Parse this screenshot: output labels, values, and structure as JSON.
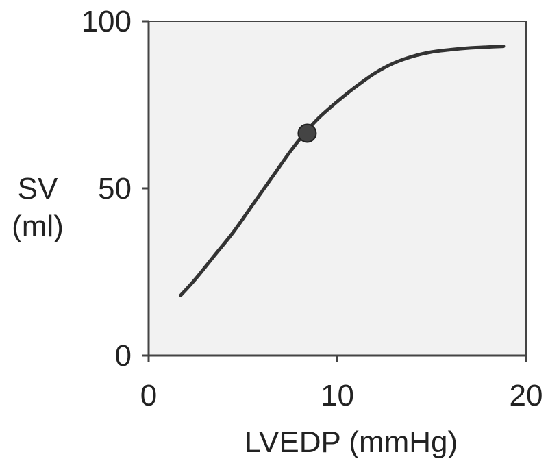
{
  "colors": {
    "plot_background": "#f2f2f2",
    "axis": "#444444",
    "curve": "#333333",
    "marker": "#444444",
    "text": "#222222"
  },
  "chart_data": {
    "type": "line",
    "title": "",
    "xlabel": "LVEDP (mmHg)",
    "ylabel_lines": [
      "SV",
      "(ml)"
    ],
    "xlim": [
      0,
      20
    ],
    "ylim": [
      0,
      100
    ],
    "x_ticks": [
      0,
      10,
      20
    ],
    "y_ticks": [
      0,
      50,
      100
    ],
    "grid": false,
    "series": [
      {
        "x": [
          1.7,
          2.5,
          3.5,
          4.5,
          5.5,
          6.5,
          7.5,
          8.2,
          9.0,
          10.0,
          11.0,
          12.0,
          13.0,
          14.0,
          15.0,
          16.0,
          17.0,
          18.0,
          18.8
        ],
        "y": [
          18,
          23,
          30,
          37,
          45,
          53,
          61,
          66,
          71,
          76,
          80.5,
          84.5,
          87.5,
          89.5,
          90.8,
          91.5,
          92.0,
          92.3,
          92.5
        ]
      }
    ],
    "highlight_point": {
      "x": 8.4,
      "y": 66.5
    }
  }
}
